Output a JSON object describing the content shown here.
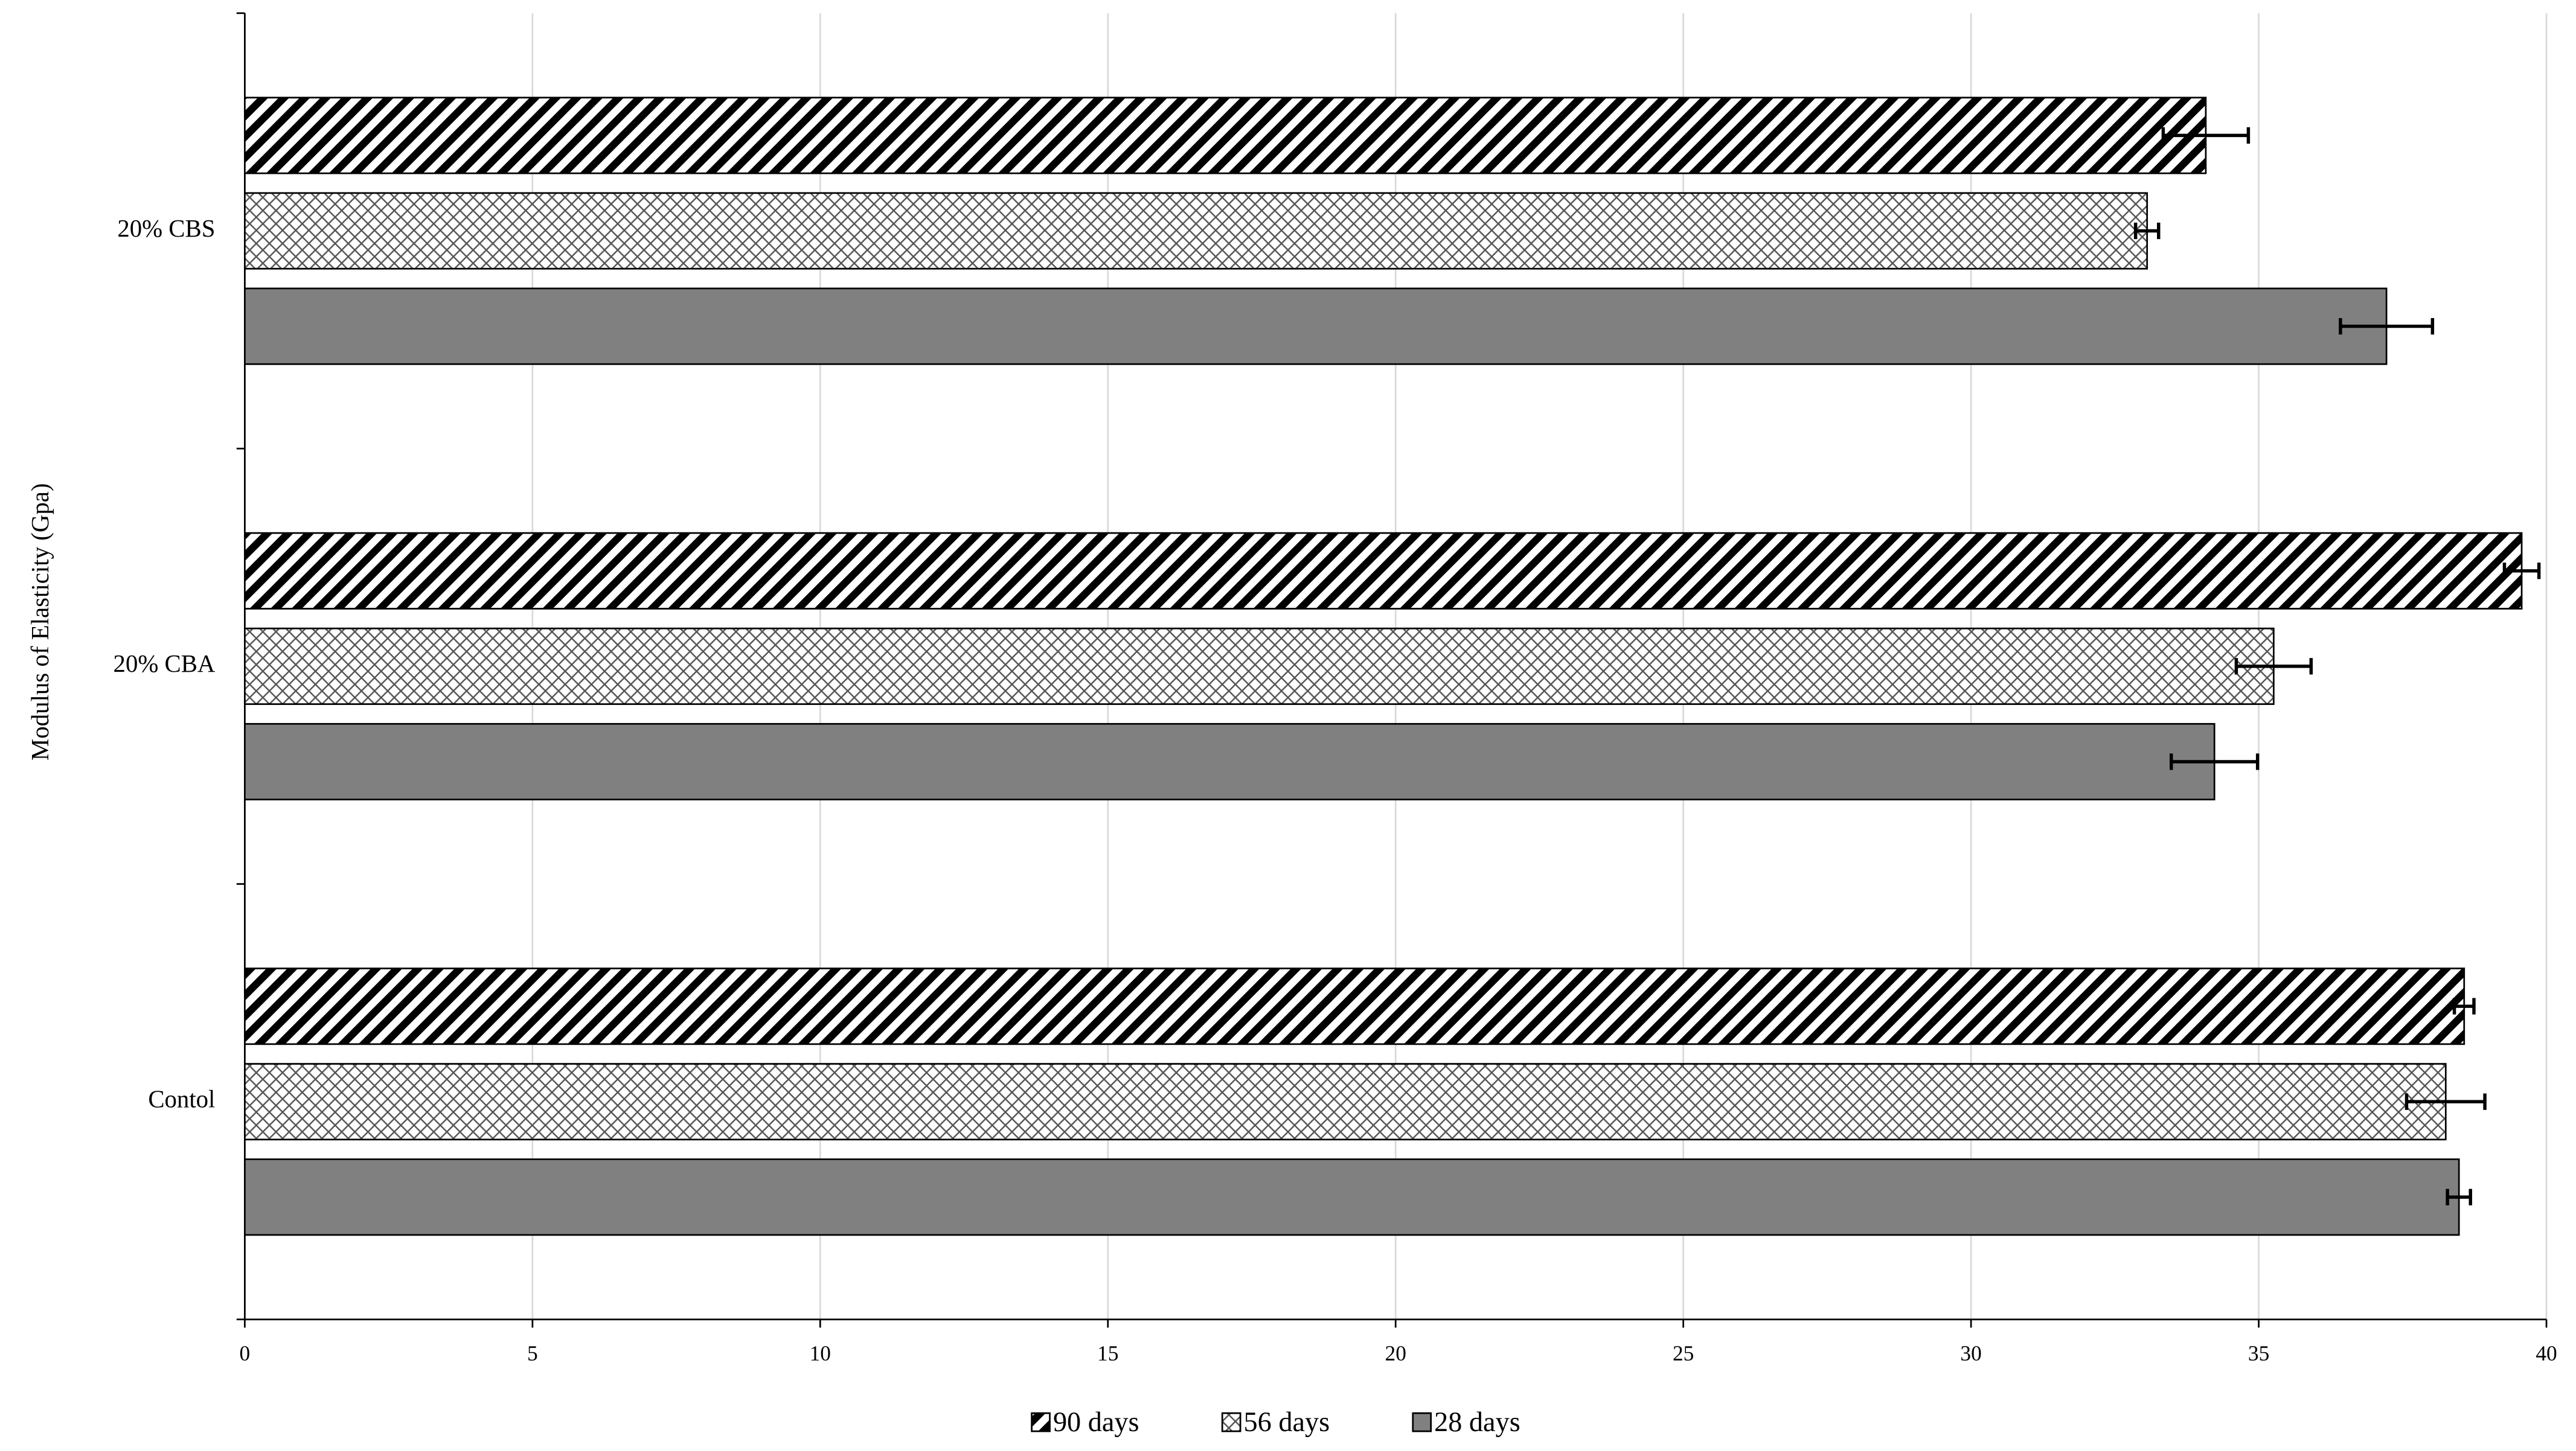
{
  "chart_data": {
    "type": "bar",
    "orientation": "horizontal",
    "categories": [
      "Contol",
      "20% CBA",
      "20% CBS"
    ],
    "series": [
      {
        "name": "90 days",
        "color": "#000000",
        "hatch": "diagonal",
        "values": [
          38.57,
          39.57,
          34.08
        ],
        "errors": [
          0.17,
          0.3,
          0.74
        ]
      },
      {
        "name": "56 days",
        "color": "#000000",
        "hatch": "cross",
        "values": [
          38.25,
          35.26,
          33.06
        ],
        "errors": [
          0.68,
          0.65,
          0.2
        ]
      },
      {
        "name": "28 days",
        "color": "#808080",
        "hatch": "solid",
        "values": [
          38.48,
          34.23,
          37.22
        ],
        "errors": [
          0.2,
          0.75,
          0.8
        ]
      }
    ],
    "y_label": "Modulus  of Elasticity (Gpa)",
    "xlim": [
      0,
      40
    ],
    "xticks": [
      0,
      5,
      10,
      15,
      20,
      25,
      30,
      35,
      40
    ],
    "grid": true,
    "legend": "bottom"
  }
}
